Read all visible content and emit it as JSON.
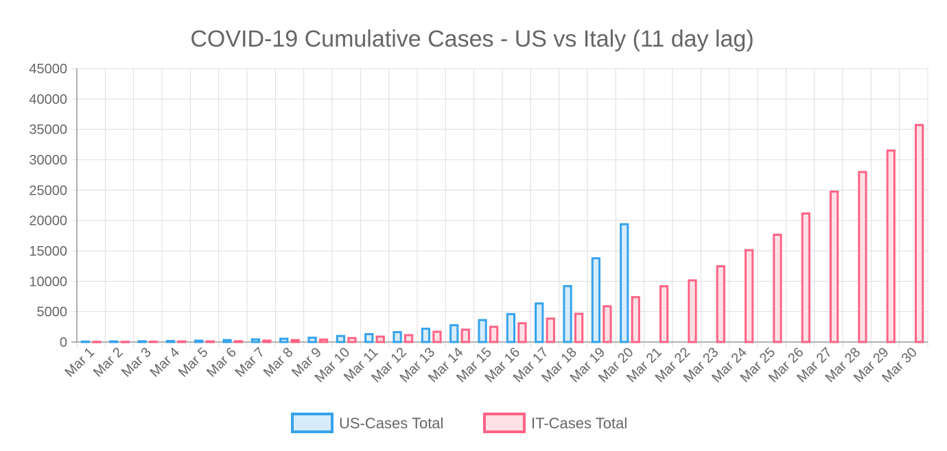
{
  "chart_data": {
    "type": "bar",
    "title": "COVID-19 Cumulative Cases - US vs Italy (11 day lag)",
    "xlabel": "",
    "ylabel": "",
    "ylim": [
      0,
      45000
    ],
    "yticks": [
      0,
      5000,
      10000,
      15000,
      20000,
      25000,
      30000,
      35000,
      40000,
      45000
    ],
    "grid": true,
    "legend": "bottom",
    "categories": [
      "Mar 1",
      "Mar 2",
      "Mar 3",
      "Mar 4",
      "Mar 5",
      "Mar 6",
      "Mar 7",
      "Mar 8",
      "Mar 9",
      "Mar 10",
      "Mar 11",
      "Mar 12",
      "Mar 13",
      "Mar 14",
      "Mar 15",
      "Mar 16",
      "Mar 17",
      "Mar 18",
      "Mar 19",
      "Mar 20",
      "Mar 21",
      "Mar 22",
      "Mar 23",
      "Mar 24",
      "Mar 25",
      "Mar 26",
      "Mar 27",
      "Mar 28",
      "Mar 29",
      "Mar 30"
    ],
    "series": [
      {
        "name": "US-Cases Total",
        "color": "#36a2eb",
        "fill": "#d7ecfb",
        "values": [
          75,
          100,
          124,
          158,
          221,
          319,
          435,
          541,
          704,
          994,
          1301,
          1630,
          2183,
          2770,
          3613,
          4596,
          6344,
          9197,
          13779,
          19383,
          null,
          null,
          null,
          null,
          null,
          null,
          null,
          null,
          null,
          null
        ]
      },
      {
        "name": "IT-Cases Total",
        "color": "#ff6384",
        "fill": "#ffe0e6",
        "values": [
          30,
          40,
          60,
          100,
          110,
          130,
          230,
          322,
          400,
          650,
          888,
          1128,
          1694,
          2036,
          2502,
          3089,
          3858,
          4636,
          5883,
          7375,
          9172,
          10149,
          12462,
          15113,
          17660,
          21157,
          24747,
          27980,
          31506,
          35713
        ]
      }
    ]
  }
}
